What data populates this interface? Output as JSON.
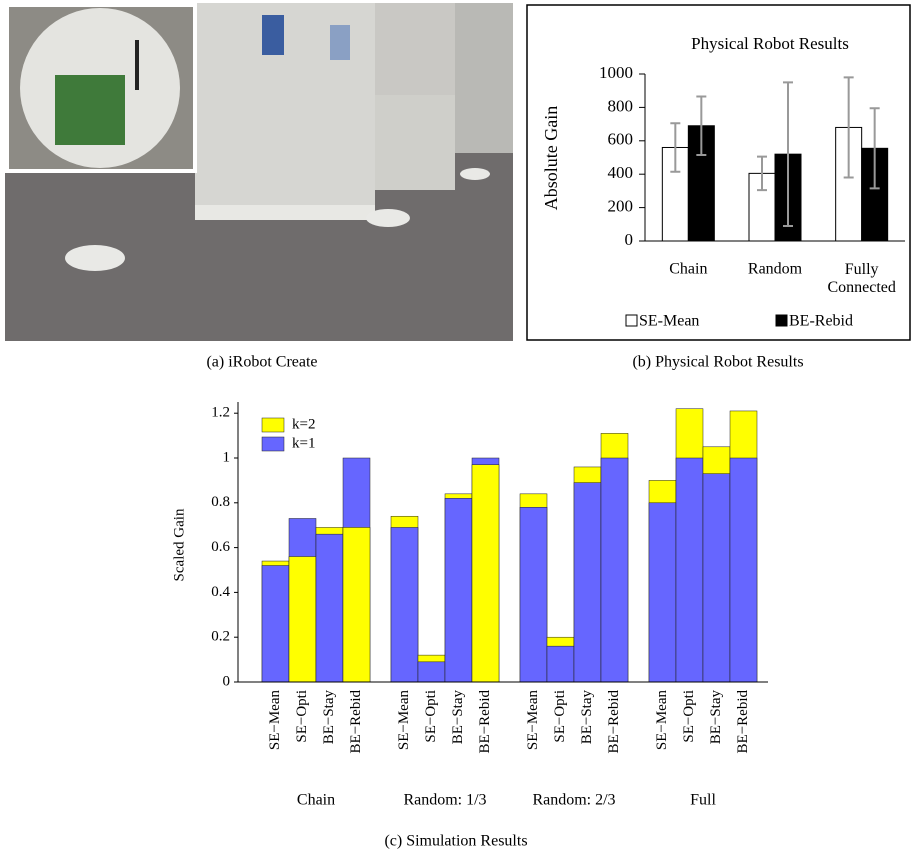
{
  "figure": {
    "captions": [
      "(a) iRobot Create",
      "(b) Physical Robot Results",
      "(c) Simulation Results"
    ]
  },
  "chart_data": [
    {
      "type": "bar",
      "title": "Physical Robot Results",
      "y_label": "Absolute Gain",
      "categories": [
        "Chain",
        "Random",
        "Fully Connected"
      ],
      "series": [
        {
          "name": "SE-Mean",
          "color": "#ffffff",
          "values": [
            560,
            405,
            680
          ],
          "errors": [
            145,
            100,
            300
          ]
        },
        {
          "name": "BE-Rebid",
          "color": "#000000",
          "values": [
            690,
            520,
            555
          ],
          "errors": [
            175,
            430,
            240
          ]
        }
      ],
      "error_color": "#999999",
      "ylim": [
        0,
        1000
      ],
      "yticks": [
        0,
        200,
        400,
        600,
        800,
        1000
      ],
      "legend": "bottom"
    },
    {
      "type": "bar",
      "mode": "overlap",
      "y_label": "Scaled Gain",
      "groups": [
        "Chain",
        "Random: 1/3",
        "Random: 2/3",
        "Full"
      ],
      "categories": [
        "SE−Mean",
        "SE−Opti",
        "BE−Stay",
        "BE−Rebid",
        "SE−Mean",
        "SE−Opti",
        "BE−Stay",
        "BE−Rebid",
        "SE−Mean",
        "SE−Opti",
        "BE−Stay",
        "BE−Rebid",
        "SE−Mean",
        "SE−Opti",
        "BE−Stay",
        "BE−Rebid"
      ],
      "series": [
        {
          "name": "k=2",
          "color": "#ffff00",
          "values": [
            0.54,
            0.56,
            0.69,
            0.69,
            0.74,
            0.12,
            0.84,
            0.97,
            0.84,
            0.2,
            0.96,
            1.11,
            0.9,
            1.22,
            1.05,
            1.21
          ]
        },
        {
          "name": "k=1",
          "color": "#6666ff",
          "values": [
            0.52,
            0.73,
            0.66,
            1.0,
            0.69,
            0.09,
            0.82,
            1.0,
            0.78,
            0.16,
            0.89,
            1.0,
            0.8,
            1.0,
            0.93,
            1.0
          ]
        }
      ],
      "ylim": [
        0,
        1.25
      ],
      "yticks": [
        0,
        0.2,
        0.4,
        0.6,
        0.8,
        1,
        1.2
      ],
      "legend": "upper left"
    }
  ]
}
